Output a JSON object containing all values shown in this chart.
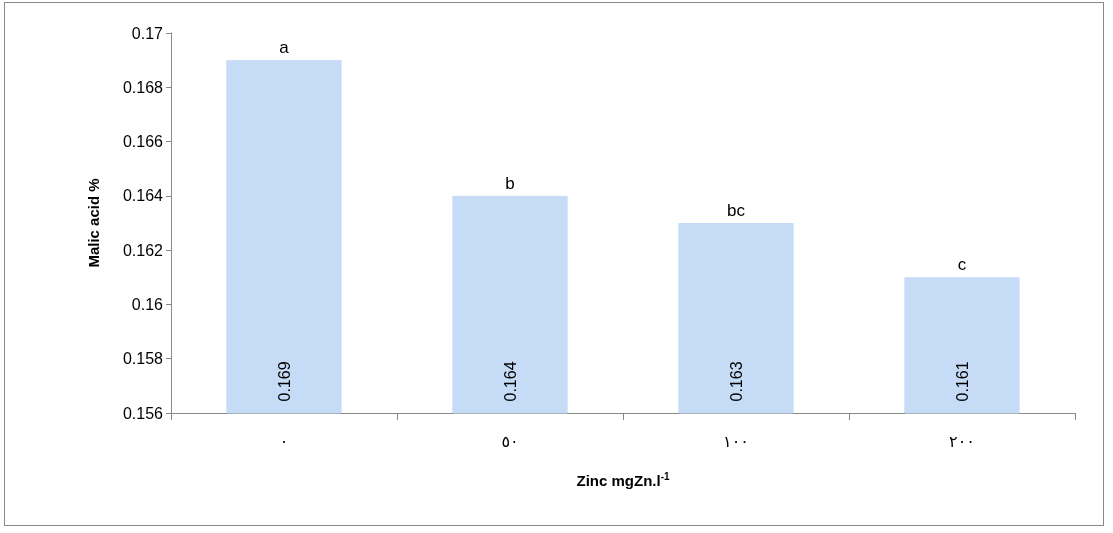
{
  "chart_data": {
    "type": "bar",
    "xlabel": "Zinc mgZn.l$^{-1}$",
    "ylabel": "Malic acid %",
    "categories": [
      "٠",
      "٥٠",
      "١٠٠",
      "٢٠٠"
    ],
    "values": [
      0.169,
      0.164,
      0.163,
      0.161
    ],
    "color": "#c6dbf5",
    "ylim": [
      0.156,
      0.17
    ],
    "yticks": [
      0.156,
      0.158,
      0.16,
      0.162,
      0.164,
      0.166,
      0.168,
      0.17
    ],
    "grid": false,
    "data_labels": true,
    "annotations": [
      {
        "text": "a",
        "x": "٠",
        "y": 0.169
      },
      {
        "text": "b",
        "x": "٥٠",
        "y": 0.164
      },
      {
        "text": "bc",
        "x": "١٠٠",
        "y": 0.163
      },
      {
        "text": "c",
        "x": "٢٠٠",
        "y": 0.161
      }
    ]
  }
}
